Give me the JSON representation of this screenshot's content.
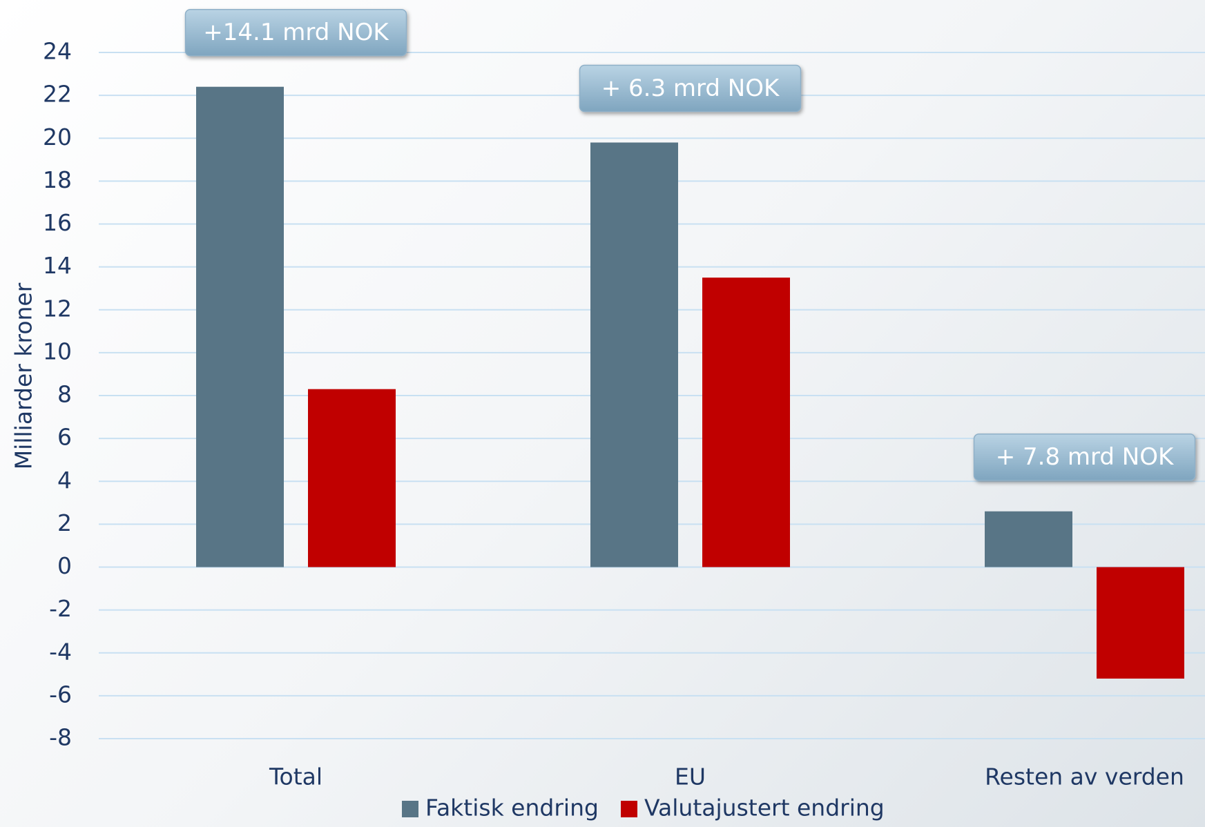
{
  "chart_data": {
    "type": "bar",
    "y_label": "Milliarder kroner",
    "categories": [
      "Total",
      "EU",
      "Resten av verden"
    ],
    "series": [
      {
        "name": "Faktisk endring",
        "color": "#587586",
        "values": [
          22.4,
          19.8,
          2.6
        ]
      },
      {
        "name": "Valutajustert endring",
        "color": "#c00000",
        "values": [
          8.3,
          13.5,
          -5.2
        ]
      }
    ],
    "annotations": [
      "+14.1 mrd NOK",
      "+ 6.3 mrd NOK",
      "+ 7.8 mrd NOK"
    ],
    "ylim": [
      -8,
      24
    ],
    "yticks": [
      -8,
      -6,
      -4,
      -2,
      0,
      2,
      4,
      6,
      8,
      10,
      12,
      14,
      16,
      18,
      20,
      22,
      24
    ],
    "grid": true,
    "legend": "bottom"
  }
}
